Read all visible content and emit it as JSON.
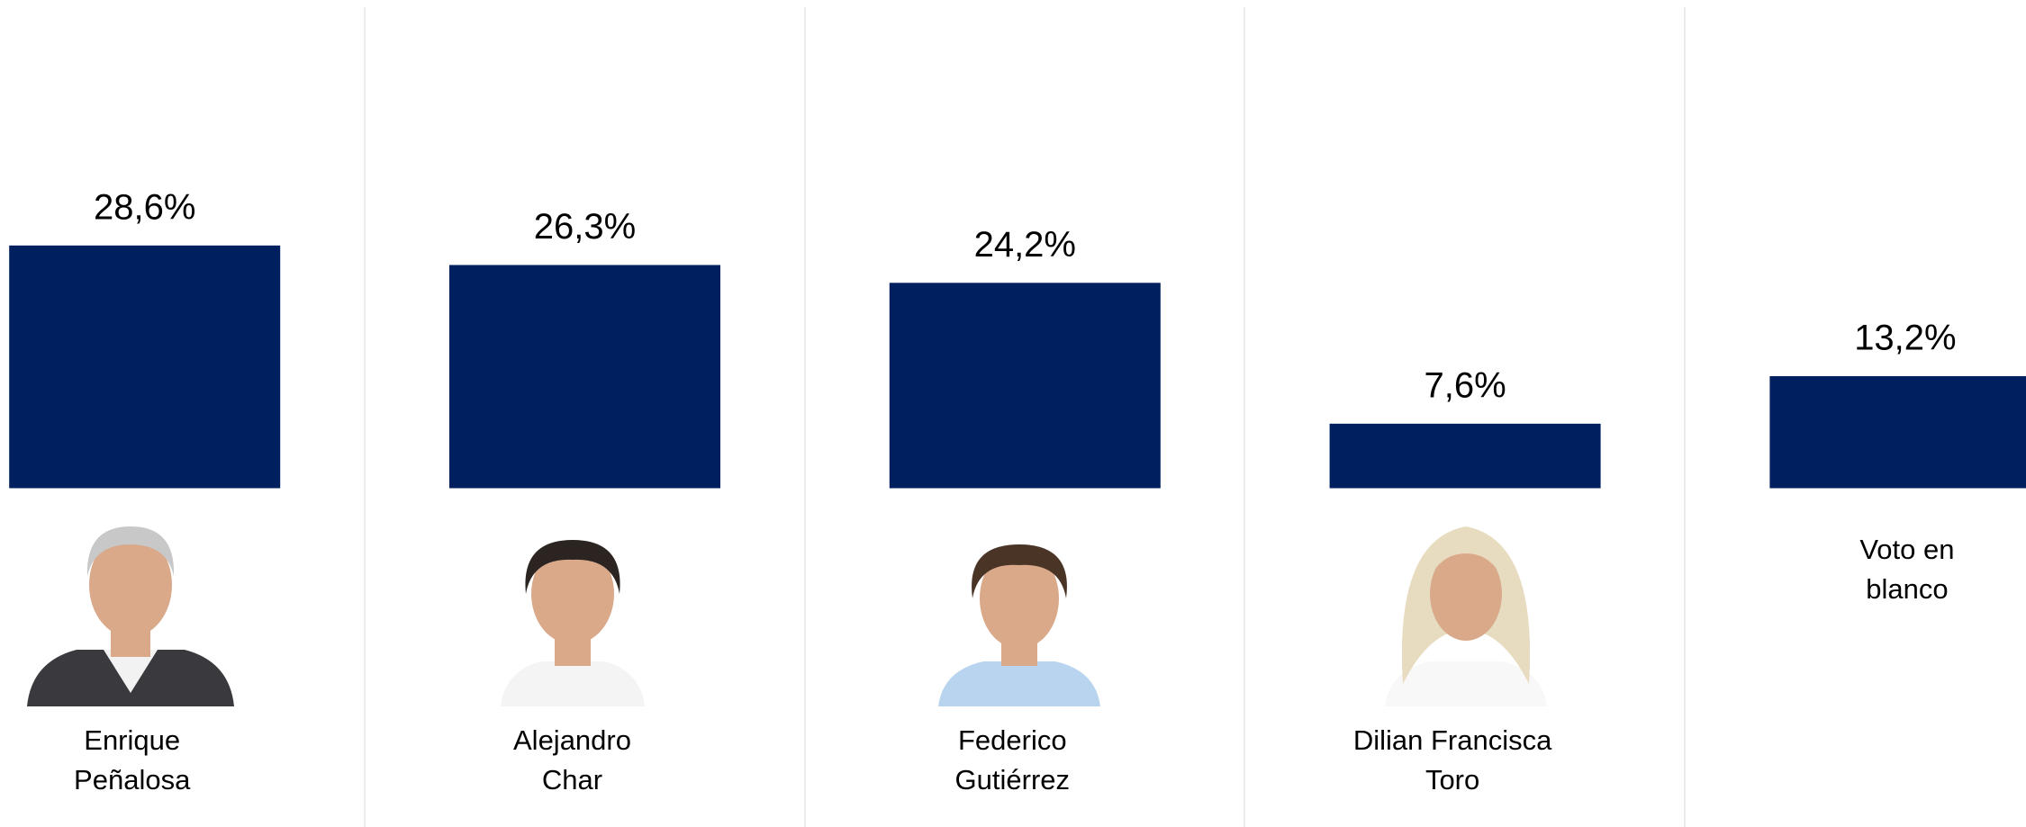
{
  "chart_data": {
    "type": "bar",
    "categories": [
      "Enrique\nPeñalosa",
      "Alejandro\nChar",
      "Federico\nGutiérrez",
      "Dilian Francisca\nToro",
      "Voto en\nblanco"
    ],
    "values": [
      28.6,
      26.3,
      24.2,
      7.6,
      13.2
    ],
    "value_labels": [
      "28,6%",
      "26,3%",
      "24,2%",
      "7,6%",
      "13,2%"
    ],
    "color": "#001f5f"
  }
}
